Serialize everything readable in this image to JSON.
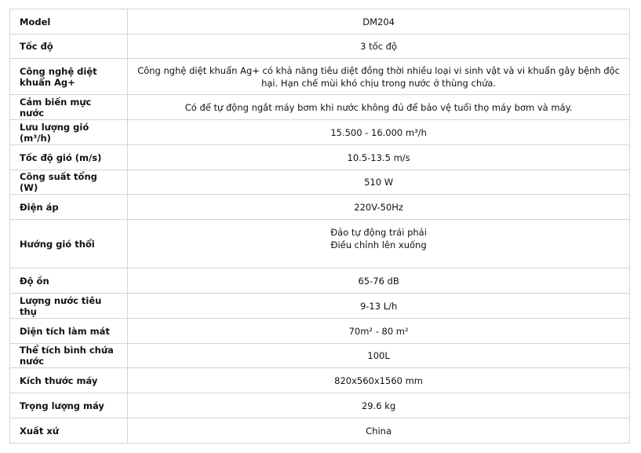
{
  "specs": [
    {
      "label": "Model",
      "value": [
        "DM204"
      ]
    },
    {
      "label": "Tốc độ",
      "value": [
        "3 tốc độ"
      ]
    },
    {
      "label": "Công nghệ diệt khuẩn Ag+",
      "value": [
        "Công nghệ diệt khuẩn Ag+ có khả năng tiêu diệt đồng thời nhiều loại vi sinh vật và vi khuẩn gây bệnh độc",
        "hại. Hạn chế mùi khó chịu trong nước ở thùng chứa."
      ]
    },
    {
      "label": "Cảm biến mực nước",
      "value": [
        "Có để tự động ngắt máy bơm khi nước không đủ để bảo vệ tuổi thọ máy bơm và máy."
      ]
    },
    {
      "label": "Lưu lượng gió (m³/h)",
      "value": [
        "15.500 - 16.000 m³/h"
      ]
    },
    {
      "label": "Tốc độ gió (m/s)",
      "value": [
        "10.5-13.5 m/s"
      ]
    },
    {
      "label": "Công suất tổng (W)",
      "value": [
        "510 W"
      ]
    },
    {
      "label": "Điện áp",
      "value": [
        "220V-50Hz"
      ]
    },
    {
      "label": "Hướng gió thổi",
      "value": [
        "Đảo tự động trái phải",
        "Điều chỉnh lên xuống"
      ]
    },
    {
      "label": "Độ ồn",
      "value": [
        "65-76 dB"
      ]
    },
    {
      "label": "Lượng nước tiêu thụ",
      "value": [
        "9-13 L/h"
      ]
    },
    {
      "label": "Diện tích làm mát",
      "value": [
        "70m² - 80 m²"
      ]
    },
    {
      "label": "Thể tích bình chứa nước",
      "value": [
        "100L"
      ]
    },
    {
      "label": "Kích thước máy",
      "value": [
        "820x560x1560 mm"
      ]
    },
    {
      "label": "Trọng lượng máy",
      "value": [
        "29.6 kg"
      ]
    },
    {
      "label": "Xuất xứ",
      "value": [
        "China"
      ]
    }
  ]
}
